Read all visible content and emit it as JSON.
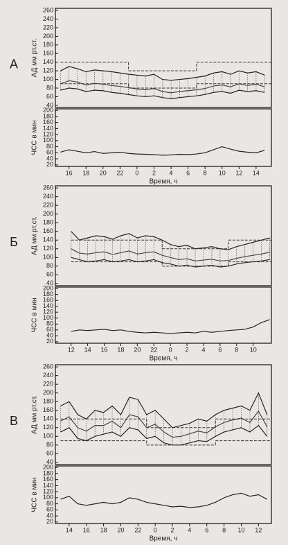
{
  "chart_data": [
    {
      "type": "line",
      "label": "А",
      "ylabel": "АД мм рт.ст.",
      "hatch": true,
      "x": [
        15,
        16,
        17,
        18,
        19,
        20,
        21,
        22,
        23,
        24,
        25,
        26,
        27,
        28,
        29,
        30,
        31,
        32,
        33,
        34,
        35,
        36,
        37,
        38,
        39
      ],
      "xlim": [
        14.4,
        39.8
      ],
      "ylim": [
        35,
        265
      ],
      "yticks": [
        40,
        60,
        80,
        100,
        120,
        140,
        160,
        180,
        200,
        220,
        240,
        260
      ],
      "series": [
        {
          "color": "#222",
          "values": [
            120,
            130,
            125,
            118,
            122,
            120,
            118,
            115,
            112,
            110,
            108,
            112,
            100,
            98,
            100,
            102,
            105,
            108,
            115,
            118,
            112,
            120,
            115,
            118,
            110
          ]
        },
        {
          "color": "#222",
          "values": [
            75,
            80,
            78,
            72,
            75,
            74,
            70,
            68,
            65,
            62,
            60,
            62,
            58,
            55,
            58,
            60,
            62,
            65,
            70,
            72,
            68,
            75,
            72,
            74,
            70
          ]
        },
        {
          "color": "#444",
          "values": [
            90,
            97,
            94,
            87,
            91,
            89,
            86,
            84,
            81,
            78,
            76,
            79,
            72,
            69,
            72,
            74,
            76,
            79,
            85,
            87,
            83,
            90,
            86,
            89,
            83
          ]
        },
        {
          "color": "#333",
          "dash": true,
          "step": true,
          "values": [
            140,
            140,
            140,
            140,
            140,
            140,
            140,
            140,
            120,
            120,
            120,
            120,
            120,
            120,
            120,
            120,
            140,
            140,
            140,
            140,
            140,
            140,
            140,
            140,
            140
          ]
        },
        {
          "color": "#333",
          "dash": true,
          "step": true,
          "values": [
            90,
            90,
            90,
            90,
            90,
            90,
            90,
            90,
            80,
            80,
            80,
            80,
            80,
            80,
            80,
            80,
            90,
            90,
            90,
            90,
            90,
            90,
            90,
            90,
            90
          ]
        }
      ]
    },
    {
      "type": "line",
      "ylabel": "ЧСС в мин",
      "xlabel": "Время, ч",
      "x": [
        15,
        16,
        17,
        18,
        19,
        20,
        21,
        22,
        23,
        24,
        25,
        26,
        27,
        28,
        29,
        30,
        31,
        32,
        33,
        34,
        35,
        36,
        37,
        38,
        39
      ],
      "xlim": [
        14.4,
        39.8
      ],
      "ylim": [
        15,
        205
      ],
      "yticks": [
        20,
        40,
        60,
        80,
        100,
        120,
        140,
        160,
        180,
        200
      ],
      "xticks": [
        16,
        18,
        20,
        22,
        {
          "value": 24,
          "label": "0"
        },
        {
          "value": 26,
          "label": "2"
        },
        {
          "value": 28,
          "label": "4"
        },
        {
          "value": 30,
          "label": "6"
        },
        {
          "value": 32,
          "label": "8"
        },
        {
          "value": 34,
          "label": "10"
        },
        {
          "value": 36,
          "label": "12"
        },
        {
          "value": 38,
          "label": "14"
        }
      ],
      "series": [
        {
          "color": "#222",
          "values": [
            62,
            70,
            65,
            60,
            64,
            58,
            60,
            62,
            58,
            56,
            55,
            54,
            52,
            53,
            55,
            54,
            56,
            60,
            70,
            80,
            72,
            65,
            62,
            60,
            68
          ]
        }
      ]
    },
    {
      "type": "line",
      "label": "Б",
      "ylabel": "АД мм рт.ст.",
      "hatch": true,
      "x": [
        12,
        13,
        14,
        15,
        16,
        17,
        18,
        19,
        20,
        21,
        22,
        23,
        24,
        25,
        26,
        27,
        28,
        29,
        30,
        31,
        32,
        33,
        34,
        35,
        36
      ],
      "xlim": [
        10.1,
        36.2
      ],
      "ylim": [
        35,
        265
      ],
      "yticks": [
        40,
        60,
        80,
        100,
        120,
        140,
        160,
        180,
        200,
        220,
        240,
        260
      ],
      "series": [
        {
          "color": "#222",
          "values": [
            160,
            140,
            145,
            150,
            148,
            142,
            150,
            155,
            145,
            150,
            148,
            140,
            130,
            125,
            128,
            120,
            122,
            125,
            120,
            118,
            125,
            130,
            135,
            140,
            145
          ]
        },
        {
          "color": "#222",
          "values": [
            100,
            95,
            90,
            92,
            95,
            90,
            92,
            95,
            90,
            92,
            95,
            88,
            85,
            80,
            82,
            78,
            80,
            82,
            78,
            80,
            85,
            88,
            90,
            92,
            95
          ]
        },
        {
          "color": "#444",
          "values": [
            120,
            110,
            108,
            111,
            113,
            107,
            111,
            115,
            108,
            111,
            113,
            105,
            100,
            95,
            97,
            92,
            94,
            96,
            92,
            93,
            98,
            102,
            105,
            108,
            112
          ]
        },
        {
          "color": "#333",
          "dash": true,
          "step": true,
          "values": [
            140,
            140,
            140,
            140,
            140,
            140,
            140,
            140,
            140,
            140,
            140,
            120,
            120,
            120,
            120,
            120,
            120,
            120,
            120,
            140,
            140,
            140,
            140,
            140,
            140
          ]
        },
        {
          "color": "#333",
          "dash": true,
          "step": true,
          "values": [
            90,
            90,
            90,
            90,
            90,
            90,
            90,
            90,
            90,
            90,
            90,
            80,
            80,
            80,
            80,
            80,
            80,
            80,
            80,
            90,
            90,
            90,
            90,
            90,
            90
          ]
        }
      ]
    },
    {
      "type": "line",
      "ylabel": "ЧСС в мин",
      "xlabel": "Время, ч",
      "x": [
        12,
        13,
        14,
        15,
        16,
        17,
        18,
        19,
        20,
        21,
        22,
        23,
        24,
        25,
        26,
        27,
        28,
        29,
        30,
        31,
        32,
        33,
        34,
        35,
        36
      ],
      "xlim": [
        10.1,
        36.2
      ],
      "ylim": [
        15,
        205
      ],
      "yticks": [
        20,
        40,
        60,
        80,
        100,
        120,
        140,
        160,
        180,
        200
      ],
      "xticks": [
        12,
        14,
        16,
        18,
        20,
        22,
        {
          "value": 24,
          "label": "0"
        },
        {
          "value": 26,
          "label": "2"
        },
        {
          "value": 28,
          "label": "4"
        },
        {
          "value": 30,
          "label": "6"
        },
        {
          "value": 32,
          "label": "8"
        },
        {
          "value": 34,
          "label": "10"
        }
      ],
      "series": [
        {
          "color": "#222",
          "values": [
            55,
            60,
            58,
            60,
            62,
            58,
            60,
            55,
            52,
            50,
            52,
            50,
            48,
            50,
            52,
            50,
            55,
            52,
            55,
            58,
            60,
            62,
            70,
            85,
            95
          ]
        }
      ]
    },
    {
      "type": "line",
      "label": "В",
      "ylabel": "АД мм рт.ст.",
      "hatch": true,
      "x": [
        13,
        14,
        15,
        16,
        17,
        18,
        19,
        20,
        21,
        22,
        23,
        24,
        25,
        26,
        27,
        28,
        29,
        30,
        31,
        32,
        33,
        34,
        35,
        36,
        37
      ],
      "xlim": [
        12.4,
        37.5
      ],
      "ylim": [
        35,
        265
      ],
      "yticks": [
        40,
        60,
        80,
        100,
        120,
        140,
        160,
        180,
        200,
        220,
        240,
        260
      ],
      "series": [
        {
          "color": "#222",
          "values": [
            170,
            180,
            150,
            140,
            160,
            155,
            170,
            150,
            190,
            185,
            150,
            160,
            140,
            120,
            125,
            130,
            140,
            135,
            150,
            160,
            165,
            170,
            160,
            200,
            150
          ]
        },
        {
          "color": "#222",
          "values": [
            110,
            120,
            95,
            90,
            100,
            105,
            110,
            100,
            120,
            115,
            95,
            100,
            85,
            80,
            80,
            85,
            90,
            88,
            100,
            110,
            115,
            120,
            110,
            125,
            100
          ]
        },
        {
          "color": "#444",
          "values": [
            135,
            145,
            120,
            112,
            125,
            125,
            135,
            120,
            150,
            145,
            120,
            128,
            110,
            98,
            100,
            106,
            112,
            108,
            122,
            132,
            138,
            142,
            132,
            158,
            122
          ]
        },
        {
          "color": "#333",
          "dash": true,
          "step": true,
          "values": [
            140,
            140,
            140,
            140,
            140,
            140,
            140,
            140,
            140,
            140,
            120,
            120,
            120,
            120,
            120,
            120,
            120,
            120,
            140,
            140,
            140,
            140,
            140,
            140,
            140
          ]
        },
        {
          "color": "#333",
          "dash": true,
          "step": true,
          "values": [
            90,
            90,
            90,
            90,
            90,
            90,
            90,
            90,
            90,
            90,
            80,
            80,
            80,
            80,
            80,
            80,
            80,
            80,
            90,
            90,
            90,
            90,
            90,
            90,
            90
          ]
        }
      ]
    },
    {
      "type": "line",
      "ylabel": "ЧСС в мин",
      "xlabel": "Время, ч",
      "x": [
        13,
        14,
        15,
        16,
        17,
        18,
        19,
        20,
        21,
        22,
        23,
        24,
        25,
        26,
        27,
        28,
        29,
        30,
        31,
        32,
        33,
        34,
        35,
        36,
        37
      ],
      "xlim": [
        12.4,
        37.5
      ],
      "ylim": [
        15,
        205
      ],
      "yticks": [
        20,
        40,
        60,
        80,
        100,
        120,
        140,
        160,
        180,
        200
      ],
      "xticks": [
        14,
        16,
        18,
        20,
        22,
        {
          "value": 24,
          "label": "0"
        },
        {
          "value": 26,
          "label": "2"
        },
        {
          "value": 28,
          "label": "4"
        },
        {
          "value": 30,
          "label": "6"
        },
        {
          "value": 32,
          "label": "8"
        },
        {
          "value": 34,
          "label": "10"
        },
        {
          "value": 36,
          "label": "12"
        }
      ],
      "series": [
        {
          "color": "#222",
          "values": [
            95,
            105,
            80,
            75,
            80,
            85,
            80,
            85,
            100,
            95,
            85,
            80,
            75,
            70,
            72,
            68,
            70,
            75,
            85,
            100,
            110,
            115,
            105,
            110,
            95
          ]
        }
      ]
    }
  ]
}
